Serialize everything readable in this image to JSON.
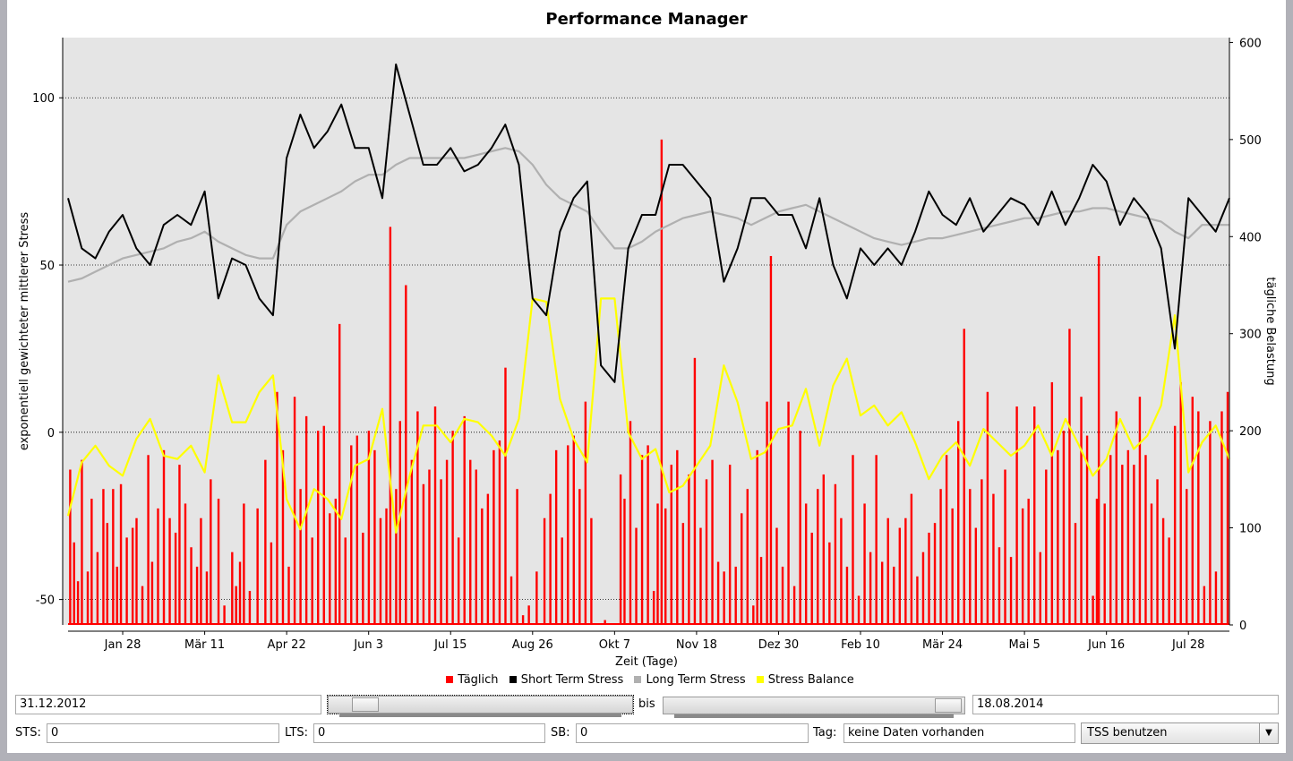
{
  "window": {
    "title": "Performance Manager"
  },
  "controls": {
    "from_date": "31.12.2012",
    "to_label": "bis",
    "to_date": "18.08.2014",
    "from_slider_position": 0.08,
    "to_slider_position": 0.97,
    "sts_label": "STS:",
    "sts_value": "0",
    "lts_label": "LTS:",
    "lts_value": "0",
    "sb_label": "SB:",
    "sb_value": "0",
    "day_label": "Tag:",
    "day_value": "keine Daten vorhanden",
    "mode_select": "TSS benutzen"
  },
  "chart_data": {
    "type": "line",
    "title": "Performance Manager",
    "xlabel": "Zeit (Tage)",
    "ylabel": "exponentiell gewichteter mittlerer Stress",
    "y2label": "tägliche Belastung",
    "x_start": "31.12.2012",
    "x_end": "18.08.2014",
    "x_days_range": [
      0,
      595
    ],
    "x_ticks": [
      {
        "day": 28,
        "label": "Jan 28"
      },
      {
        "day": 70,
        "label": "Mär 11"
      },
      {
        "day": 112,
        "label": "Apr 22"
      },
      {
        "day": 154,
        "label": "Jun 3"
      },
      {
        "day": 196,
        "label": "Jul 15"
      },
      {
        "day": 238,
        "label": "Aug 26"
      },
      {
        "day": 280,
        "label": "Okt 7"
      },
      {
        "day": 322,
        "label": "Nov 18"
      },
      {
        "day": 364,
        "label": "Dez 30"
      },
      {
        "day": 406,
        "label": "Feb 10"
      },
      {
        "day": 448,
        "label": "Mär 24"
      },
      {
        "day": 490,
        "label": "Mai 5"
      },
      {
        "day": 532,
        "label": "Jun 16"
      },
      {
        "day": 574,
        "label": "Jul 28"
      }
    ],
    "ylim": [
      -57.6,
      118
    ],
    "y_ticks": [
      -50,
      0,
      50,
      100
    ],
    "y2lim": [
      0,
      605
    ],
    "y2_ticks": [
      0,
      100,
      200,
      300,
      400,
      500,
      600
    ],
    "grid": "horizontal-dotted",
    "legend_position": "bottom",
    "legend": [
      {
        "name": "Täglich",
        "color": "#ff0000"
      },
      {
        "name": "Short Term Stress",
        "color": "#000000"
      },
      {
        "name": "Long Term Stress",
        "color": "#b0b0b0"
      },
      {
        "name": "Stress Balance",
        "color": "#ffff00"
      }
    ],
    "line_x_step_days": 7,
    "series": [
      {
        "name": "Short Term Stress",
        "axis": "left",
        "values": [
          70,
          55,
          52,
          60,
          65,
          55,
          50,
          62,
          65,
          62,
          72,
          40,
          52,
          50,
          40,
          35,
          82,
          95,
          85,
          90,
          98,
          85,
          85,
          70,
          110,
          95,
          80,
          80,
          85,
          78,
          80,
          85,
          92,
          80,
          40,
          35,
          60,
          70,
          75,
          20,
          15,
          55,
          65,
          65,
          80,
          80,
          75,
          70,
          45,
          55,
          70,
          70,
          65,
          65,
          55,
          70,
          50,
          40,
          55,
          50,
          55,
          50,
          60,
          72,
          65,
          62,
          70,
          60,
          65,
          70,
          68,
          62,
          72,
          62,
          70,
          80,
          75,
          62,
          70,
          65,
          55,
          25,
          70,
          65,
          60,
          70
        ]
      },
      {
        "name": "Long Term Stress",
        "axis": "left",
        "values": [
          45,
          46,
          48,
          50,
          52,
          53,
          54,
          55,
          57,
          58,
          60,
          57,
          55,
          53,
          52,
          52,
          62,
          66,
          68,
          70,
          72,
          75,
          77,
          77,
          80,
          82,
          82,
          82,
          82,
          82,
          83,
          84,
          85,
          84,
          80,
          74,
          70,
          68,
          66,
          60,
          55,
          55,
          57,
          60,
          62,
          64,
          65,
          66,
          65,
          64,
          62,
          64,
          66,
          67,
          68,
          66,
          64,
          62,
          60,
          58,
          57,
          56,
          57,
          58,
          58,
          59,
          60,
          61,
          62,
          63,
          64,
          64,
          65,
          66,
          66,
          67,
          67,
          66,
          65,
          64,
          63,
          60,
          58,
          62,
          62,
          62
        ]
      },
      {
        "name": "Stress Balance",
        "axis": "left",
        "values": [
          -25,
          -9,
          -4,
          -10,
          -13,
          -2,
          4,
          -7,
          -8,
          -4,
          -12,
          17,
          3,
          3,
          12,
          17,
          -20,
          -29,
          -17,
          -20,
          -26,
          -10,
          -8,
          7,
          -30,
          -13,
          2,
          2,
          -3,
          4,
          3,
          -1,
          -7,
          4,
          40,
          39,
          10,
          -2,
          -9,
          40,
          40,
          0,
          -8,
          -5,
          -18,
          -16,
          -10,
          -4,
          20,
          9,
          -8,
          -6,
          1,
          2,
          13,
          -4,
          14,
          22,
          5,
          8,
          2,
          6,
          -3,
          -14,
          -7,
          -3,
          -10,
          1,
          -3,
          -7,
          -4,
          2,
          -7,
          4,
          -4,
          -13,
          -8,
          4,
          -5,
          -1,
          8,
          35,
          -12,
          -3,
          2,
          -8
        ]
      }
    ],
    "bars": {
      "name": "Täglich",
      "axis": "right",
      "points": [
        [
          1,
          160
        ],
        [
          3,
          85
        ],
        [
          5,
          45
        ],
        [
          7,
          170
        ],
        [
          10,
          55
        ],
        [
          12,
          130
        ],
        [
          15,
          75
        ],
        [
          18,
          140
        ],
        [
          20,
          105
        ],
        [
          23,
          140
        ],
        [
          25,
          60
        ],
        [
          27,
          145
        ],
        [
          30,
          90
        ],
        [
          33,
          100
        ],
        [
          35,
          110
        ],
        [
          38,
          40
        ],
        [
          41,
          175
        ],
        [
          43,
          65
        ],
        [
          46,
          120
        ],
        [
          49,
          180
        ],
        [
          52,
          110
        ],
        [
          55,
          95
        ],
        [
          57,
          165
        ],
        [
          60,
          125
        ],
        [
          63,
          80
        ],
        [
          66,
          60
        ],
        [
          68,
          110
        ],
        [
          71,
          55
        ],
        [
          73,
          150
        ],
        [
          77,
          130
        ],
        [
          80,
          20
        ],
        [
          84,
          75
        ],
        [
          86,
          40
        ],
        [
          88,
          65
        ],
        [
          90,
          125
        ],
        [
          93,
          35
        ],
        [
          97,
          120
        ],
        [
          101,
          170
        ],
        [
          104,
          85
        ],
        [
          107,
          240
        ],
        [
          110,
          180
        ],
        [
          113,
          60
        ],
        [
          116,
          235
        ],
        [
          119,
          140
        ],
        [
          122,
          215
        ],
        [
          125,
          90
        ],
        [
          128,
          200
        ],
        [
          131,
          205
        ],
        [
          134,
          115
        ],
        [
          137,
          130
        ],
        [
          139,
          310
        ],
        [
          142,
          90
        ],
        [
          145,
          185
        ],
        [
          148,
          195
        ],
        [
          151,
          95
        ],
        [
          154,
          200
        ],
        [
          157,
          180
        ],
        [
          160,
          110
        ],
        [
          163,
          120
        ],
        [
          165,
          410
        ],
        [
          168,
          140
        ],
        [
          170,
          210
        ],
        [
          173,
          350
        ],
        [
          176,
          170
        ],
        [
          179,
          220
        ],
        [
          182,
          145
        ],
        [
          185,
          160
        ],
        [
          188,
          225
        ],
        [
          191,
          150
        ],
        [
          194,
          170
        ],
        [
          197,
          200
        ],
        [
          200,
          90
        ],
        [
          203,
          215
        ],
        [
          206,
          170
        ],
        [
          209,
          160
        ],
        [
          212,
          120
        ],
        [
          215,
          135
        ],
        [
          218,
          180
        ],
        [
          221,
          190
        ],
        [
          224,
          265
        ],
        [
          227,
          50
        ],
        [
          230,
          140
        ],
        [
          233,
          10
        ],
        [
          236,
          20
        ],
        [
          240,
          55
        ],
        [
          244,
          110
        ],
        [
          247,
          135
        ],
        [
          250,
          180
        ],
        [
          253,
          90
        ],
        [
          256,
          185
        ],
        [
          259,
          195
        ],
        [
          262,
          140
        ],
        [
          265,
          230
        ],
        [
          268,
          110
        ],
        [
          275,
          5
        ],
        [
          283,
          155
        ],
        [
          285,
          130
        ],
        [
          288,
          210
        ],
        [
          291,
          100
        ],
        [
          294,
          175
        ],
        [
          297,
          185
        ],
        [
          300,
          35
        ],
        [
          302,
          125
        ],
        [
          304,
          500
        ],
        [
          306,
          120
        ],
        [
          309,
          165
        ],
        [
          312,
          180
        ],
        [
          315,
          105
        ],
        [
          318,
          155
        ],
        [
          321,
          275
        ],
        [
          324,
          100
        ],
        [
          327,
          150
        ],
        [
          330,
          170
        ],
        [
          333,
          65
        ],
        [
          336,
          55
        ],
        [
          339,
          165
        ],
        [
          342,
          60
        ],
        [
          345,
          115
        ],
        [
          348,
          140
        ],
        [
          351,
          20
        ],
        [
          353,
          180
        ],
        [
          355,
          70
        ],
        [
          358,
          230
        ],
        [
          360,
          380
        ],
        [
          363,
          100
        ],
        [
          366,
          60
        ],
        [
          369,
          230
        ],
        [
          372,
          40
        ],
        [
          375,
          200
        ],
        [
          378,
          125
        ],
        [
          381,
          95
        ],
        [
          384,
          140
        ],
        [
          387,
          155
        ],
        [
          390,
          85
        ],
        [
          393,
          145
        ],
        [
          396,
          110
        ],
        [
          399,
          60
        ],
        [
          402,
          175
        ],
        [
          405,
          30
        ],
        [
          408,
          125
        ],
        [
          411,
          75
        ],
        [
          414,
          175
        ],
        [
          417,
          65
        ],
        [
          420,
          110
        ],
        [
          423,
          60
        ],
        [
          426,
          100
        ],
        [
          429,
          110
        ],
        [
          432,
          135
        ],
        [
          435,
          50
        ],
        [
          438,
          75
        ],
        [
          441,
          95
        ],
        [
          444,
          105
        ],
        [
          447,
          140
        ],
        [
          450,
          175
        ],
        [
          453,
          120
        ],
        [
          456,
          210
        ],
        [
          459,
          305
        ],
        [
          462,
          140
        ],
        [
          465,
          100
        ],
        [
          468,
          150
        ],
        [
          471,
          240
        ],
        [
          474,
          135
        ],
        [
          477,
          80
        ],
        [
          480,
          160
        ],
        [
          483,
          70
        ],
        [
          486,
          225
        ],
        [
          489,
          120
        ],
        [
          492,
          130
        ],
        [
          495,
          225
        ],
        [
          498,
          75
        ],
        [
          501,
          160
        ],
        [
          504,
          250
        ],
        [
          507,
          180
        ],
        [
          510,
          200
        ],
        [
          513,
          305
        ],
        [
          516,
          105
        ],
        [
          519,
          235
        ],
        [
          522,
          195
        ],
        [
          525,
          30
        ],
        [
          527,
          130
        ],
        [
          528,
          380
        ],
        [
          531,
          125
        ],
        [
          534,
          175
        ],
        [
          537,
          220
        ],
        [
          540,
          165
        ],
        [
          543,
          180
        ],
        [
          546,
          165
        ],
        [
          549,
          235
        ],
        [
          552,
          175
        ],
        [
          555,
          125
        ],
        [
          558,
          150
        ],
        [
          561,
          110
        ],
        [
          564,
          90
        ],
        [
          567,
          205
        ],
        [
          570,
          250
        ],
        [
          573,
          140
        ],
        [
          576,
          235
        ],
        [
          579,
          220
        ],
        [
          582,
          40
        ],
        [
          585,
          210
        ],
        [
          588,
          55
        ],
        [
          591,
          220
        ],
        [
          594,
          240
        ]
      ]
    }
  }
}
